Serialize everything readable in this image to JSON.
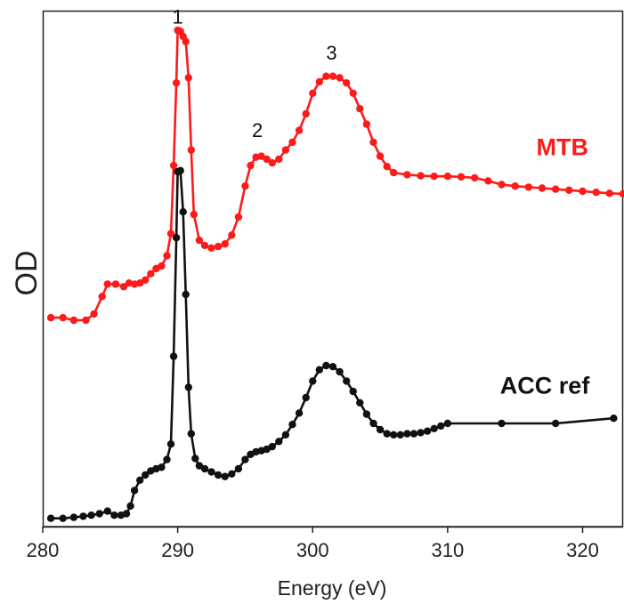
{
  "chart_data": {
    "type": "line",
    "xlabel": "Energy (eV)",
    "ylabel": "OD",
    "xlim": [
      280,
      323
    ],
    "ylim": [
      0,
      1.0
    ],
    "x_ticks": [
      "280",
      "290",
      "300",
      "310",
      "320"
    ],
    "y_ticks": [],
    "grid": false,
    "legend": "none",
    "peak_annotations": [
      {
        "label": "1",
        "x": 290.0,
        "y": 0.975
      },
      {
        "label": "2",
        "x": 295.9,
        "y": 0.755
      },
      {
        "label": "3",
        "x": 301.4,
        "y": 0.905
      }
    ],
    "series": [
      {
        "name": "MTB",
        "color": "#ff1a1a",
        "points": [
          [
            280.6,
            0.405
          ],
          [
            281.5,
            0.405
          ],
          [
            282.3,
            0.4
          ],
          [
            283.2,
            0.4
          ],
          [
            283.8,
            0.412
          ],
          [
            284.4,
            0.446
          ],
          [
            284.8,
            0.47
          ],
          [
            285.4,
            0.47
          ],
          [
            286.0,
            0.465
          ],
          [
            286.4,
            0.472
          ],
          [
            286.8,
            0.47
          ],
          [
            287.2,
            0.472
          ],
          [
            287.6,
            0.478
          ],
          [
            288.0,
            0.49
          ],
          [
            288.4,
            0.5
          ],
          [
            288.8,
            0.505
          ],
          [
            289.2,
            0.525
          ],
          [
            289.5,
            0.568
          ],
          [
            289.7,
            0.7
          ],
          [
            289.9,
            0.86
          ],
          [
            290.0,
            0.962
          ],
          [
            290.2,
            0.96
          ],
          [
            290.4,
            0.95
          ],
          [
            290.6,
            0.94
          ],
          [
            290.8,
            0.87
          ],
          [
            291.0,
            0.73
          ],
          [
            291.2,
            0.605
          ],
          [
            291.6,
            0.555
          ],
          [
            292.0,
            0.545
          ],
          [
            292.5,
            0.54
          ],
          [
            293.0,
            0.543
          ],
          [
            293.5,
            0.548
          ],
          [
            294.0,
            0.565
          ],
          [
            294.5,
            0.6
          ],
          [
            295.0,
            0.66
          ],
          [
            295.4,
            0.7
          ],
          [
            295.8,
            0.716
          ],
          [
            296.2,
            0.718
          ],
          [
            296.6,
            0.712
          ],
          [
            297.0,
            0.705
          ],
          [
            297.5,
            0.712
          ],
          [
            298.0,
            0.73
          ],
          [
            298.5,
            0.745
          ],
          [
            299.0,
            0.768
          ],
          [
            299.5,
            0.8
          ],
          [
            300.0,
            0.84
          ],
          [
            300.5,
            0.862
          ],
          [
            301.0,
            0.873
          ],
          [
            301.5,
            0.873
          ],
          [
            302.0,
            0.87
          ],
          [
            302.5,
            0.86
          ],
          [
            303.0,
            0.84
          ],
          [
            303.5,
            0.81
          ],
          [
            304.0,
            0.78
          ],
          [
            304.5,
            0.745
          ],
          [
            305.0,
            0.718
          ],
          [
            305.5,
            0.698
          ],
          [
            306.0,
            0.686
          ],
          [
            307.0,
            0.682
          ],
          [
            308.0,
            0.68
          ],
          [
            309.0,
            0.679
          ],
          [
            310.0,
            0.679
          ],
          [
            311.0,
            0.678
          ],
          [
            312.0,
            0.676
          ],
          [
            313.0,
            0.67
          ],
          [
            314.0,
            0.663
          ],
          [
            315.0,
            0.66
          ],
          [
            316.0,
            0.658
          ],
          [
            317.0,
            0.656
          ],
          [
            318.0,
            0.654
          ],
          [
            319.0,
            0.652
          ],
          [
            320.0,
            0.65
          ],
          [
            321.0,
            0.648
          ],
          [
            322.0,
            0.646
          ],
          [
            323.0,
            0.645
          ]
        ]
      },
      {
        "name": "ACC ref",
        "color": "#111111",
        "points": [
          [
            280.6,
            0.016
          ],
          [
            281.5,
            0.016
          ],
          [
            282.3,
            0.018
          ],
          [
            283.0,
            0.02
          ],
          [
            283.6,
            0.022
          ],
          [
            284.2,
            0.025
          ],
          [
            284.8,
            0.03
          ],
          [
            285.3,
            0.022
          ],
          [
            285.8,
            0.022
          ],
          [
            286.2,
            0.025
          ],
          [
            286.5,
            0.04
          ],
          [
            286.8,
            0.07
          ],
          [
            287.2,
            0.09
          ],
          [
            287.6,
            0.1
          ],
          [
            288.0,
            0.108
          ],
          [
            288.4,
            0.112
          ],
          [
            288.8,
            0.115
          ],
          [
            289.2,
            0.13
          ],
          [
            289.5,
            0.16
          ],
          [
            289.7,
            0.33
          ],
          [
            289.9,
            0.56
          ],
          [
            290.0,
            0.688
          ],
          [
            290.2,
            0.69
          ],
          [
            290.4,
            0.61
          ],
          [
            290.6,
            0.45
          ],
          [
            290.8,
            0.27
          ],
          [
            291.0,
            0.18
          ],
          [
            291.3,
            0.132
          ],
          [
            291.6,
            0.118
          ],
          [
            292.0,
            0.112
          ],
          [
            292.5,
            0.106
          ],
          [
            293.0,
            0.1
          ],
          [
            293.5,
            0.097
          ],
          [
            294.0,
            0.102
          ],
          [
            294.5,
            0.112
          ],
          [
            295.0,
            0.13
          ],
          [
            295.4,
            0.14
          ],
          [
            295.8,
            0.145
          ],
          [
            296.2,
            0.147
          ],
          [
            296.6,
            0.15
          ],
          [
            297.0,
            0.155
          ],
          [
            297.5,
            0.165
          ],
          [
            298.0,
            0.178
          ],
          [
            298.5,
            0.198
          ],
          [
            299.0,
            0.22
          ],
          [
            299.5,
            0.25
          ],
          [
            300.0,
            0.282
          ],
          [
            300.5,
            0.304
          ],
          [
            301.0,
            0.312
          ],
          [
            301.5,
            0.31
          ],
          [
            302.0,
            0.3
          ],
          [
            302.5,
            0.282
          ],
          [
            303.0,
            0.262
          ],
          [
            303.5,
            0.24
          ],
          [
            304.0,
            0.218
          ],
          [
            304.5,
            0.2
          ],
          [
            305.0,
            0.188
          ],
          [
            305.5,
            0.18
          ],
          [
            306.0,
            0.178
          ],
          [
            306.5,
            0.178
          ],
          [
            307.0,
            0.18
          ],
          [
            307.5,
            0.18
          ],
          [
            308.0,
            0.182
          ],
          [
            308.5,
            0.185
          ],
          [
            309.0,
            0.19
          ],
          [
            309.5,
            0.195
          ],
          [
            310.0,
            0.2
          ],
          [
            314.0,
            0.2
          ],
          [
            318.0,
            0.2
          ],
          [
            322.3,
            0.21
          ]
        ]
      }
    ],
    "series_labels": [
      {
        "text": "MTB",
        "color": "#ff1a1a",
        "x": 318.5,
        "y": 0.72
      },
      {
        "text": "ACC ref",
        "color": "#111111",
        "x": 317.2,
        "y": 0.258
      }
    ]
  }
}
